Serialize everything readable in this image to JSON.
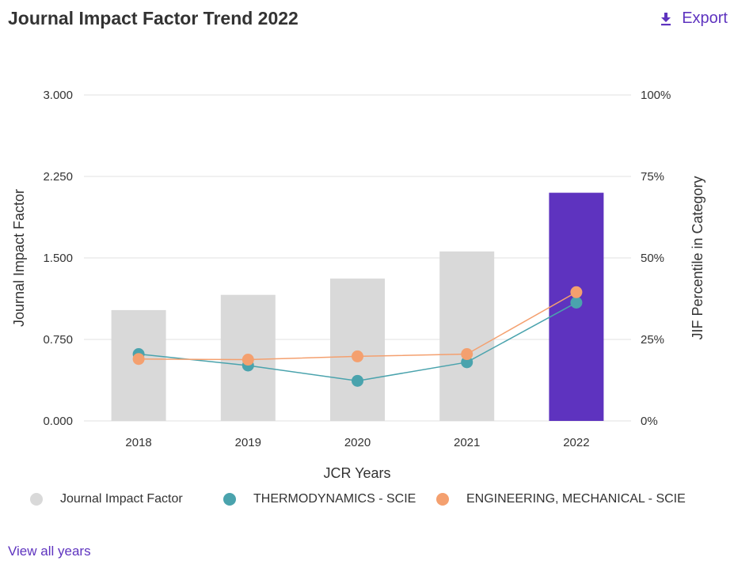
{
  "header": {
    "title": "Journal Impact Factor Trend 2022",
    "export_label": "Export",
    "export_icon": "download-icon"
  },
  "colors": {
    "accent": "#5e33bf",
    "bar_default": "#d9d9d9",
    "bar_highlight": "#5e33bf",
    "series_thermo": "#4aa3ad",
    "series_engmech": "#f4a06f",
    "gridline": "#e0e0e0"
  },
  "chart_data": {
    "type": "bar",
    "xlabel": "JCR Years",
    "ylabel": "Journal Impact Factor",
    "y2label": "JIF Percentile in Category",
    "categories": [
      "2018",
      "2019",
      "2020",
      "2021",
      "2022"
    ],
    "ylim": [
      0,
      3
    ],
    "y_ticks": [
      "0.000",
      "0.750",
      "1.500",
      "2.250",
      "3.000"
    ],
    "y_tick_values": [
      0,
      0.75,
      1.5,
      2.25,
      3
    ],
    "y2lim": [
      0,
      100
    ],
    "y2_ticks": [
      "0%",
      "25%",
      "50%",
      "75%",
      "100%"
    ],
    "y2_tick_values": [
      0,
      25,
      50,
      75,
      100
    ],
    "grid": true,
    "legend_position": "bottom",
    "highlight_category": "2022",
    "bars": {
      "name": "Journal Impact Factor",
      "values": [
        1.02,
        1.16,
        1.31,
        1.56,
        2.1
      ]
    },
    "series": [
      {
        "name": "THERMODYNAMICS - SCIE",
        "axis": "right",
        "values": [
          20.5,
          17.0,
          12.3,
          18.0,
          36.3
        ]
      },
      {
        "name": "ENGINEERING, MECHANICAL - SCIE",
        "axis": "right",
        "values": [
          19.0,
          18.8,
          19.8,
          20.5,
          39.5
        ]
      }
    ]
  },
  "footer": {
    "view_all_label": "View all years"
  }
}
